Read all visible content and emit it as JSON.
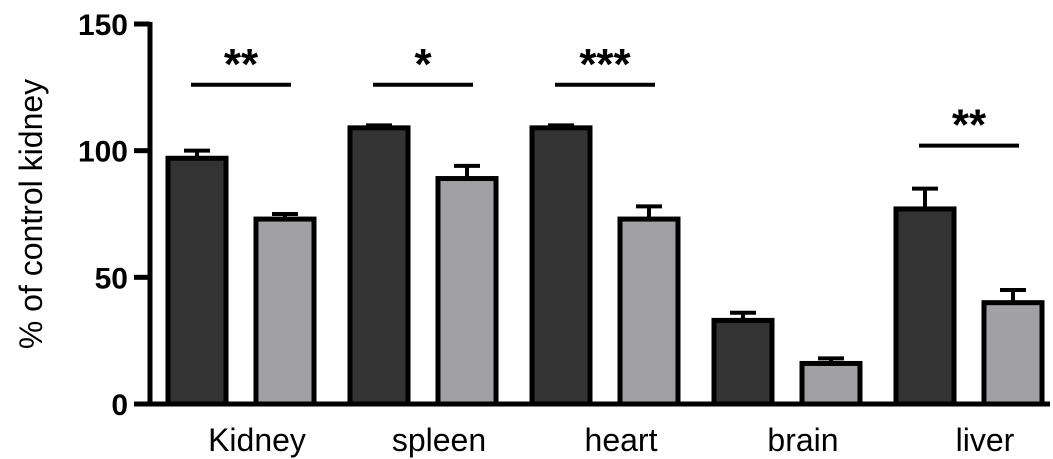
{
  "chart_data": {
    "type": "bar",
    "title": "",
    "xlabel": "",
    "ylabel": "% of control kidney",
    "ylim": [
      0,
      150
    ],
    "yticks": [
      0,
      50,
      100,
      150
    ],
    "categories": [
      "Kidney",
      "spleen",
      "heart",
      "brain",
      "liver"
    ],
    "series": [
      {
        "color": "#333333",
        "values": [
          97,
          109,
          109,
          33,
          77
        ],
        "errors": [
          3,
          1,
          1,
          3,
          8
        ]
      },
      {
        "color": "#a1a1a5",
        "values": [
          73,
          89,
          73,
          16,
          40
        ],
        "errors": [
          2,
          5,
          5,
          2,
          5
        ]
      }
    ],
    "significance": [
      {
        "category": "Kidney",
        "label": "**",
        "y": 126
      },
      {
        "category": "spleen",
        "label": "*",
        "y": 126
      },
      {
        "category": "heart",
        "label": "***",
        "y": 126
      },
      {
        "category": "liver",
        "label": "**",
        "y": 102
      }
    ],
    "grid": false,
    "legend": "none"
  }
}
